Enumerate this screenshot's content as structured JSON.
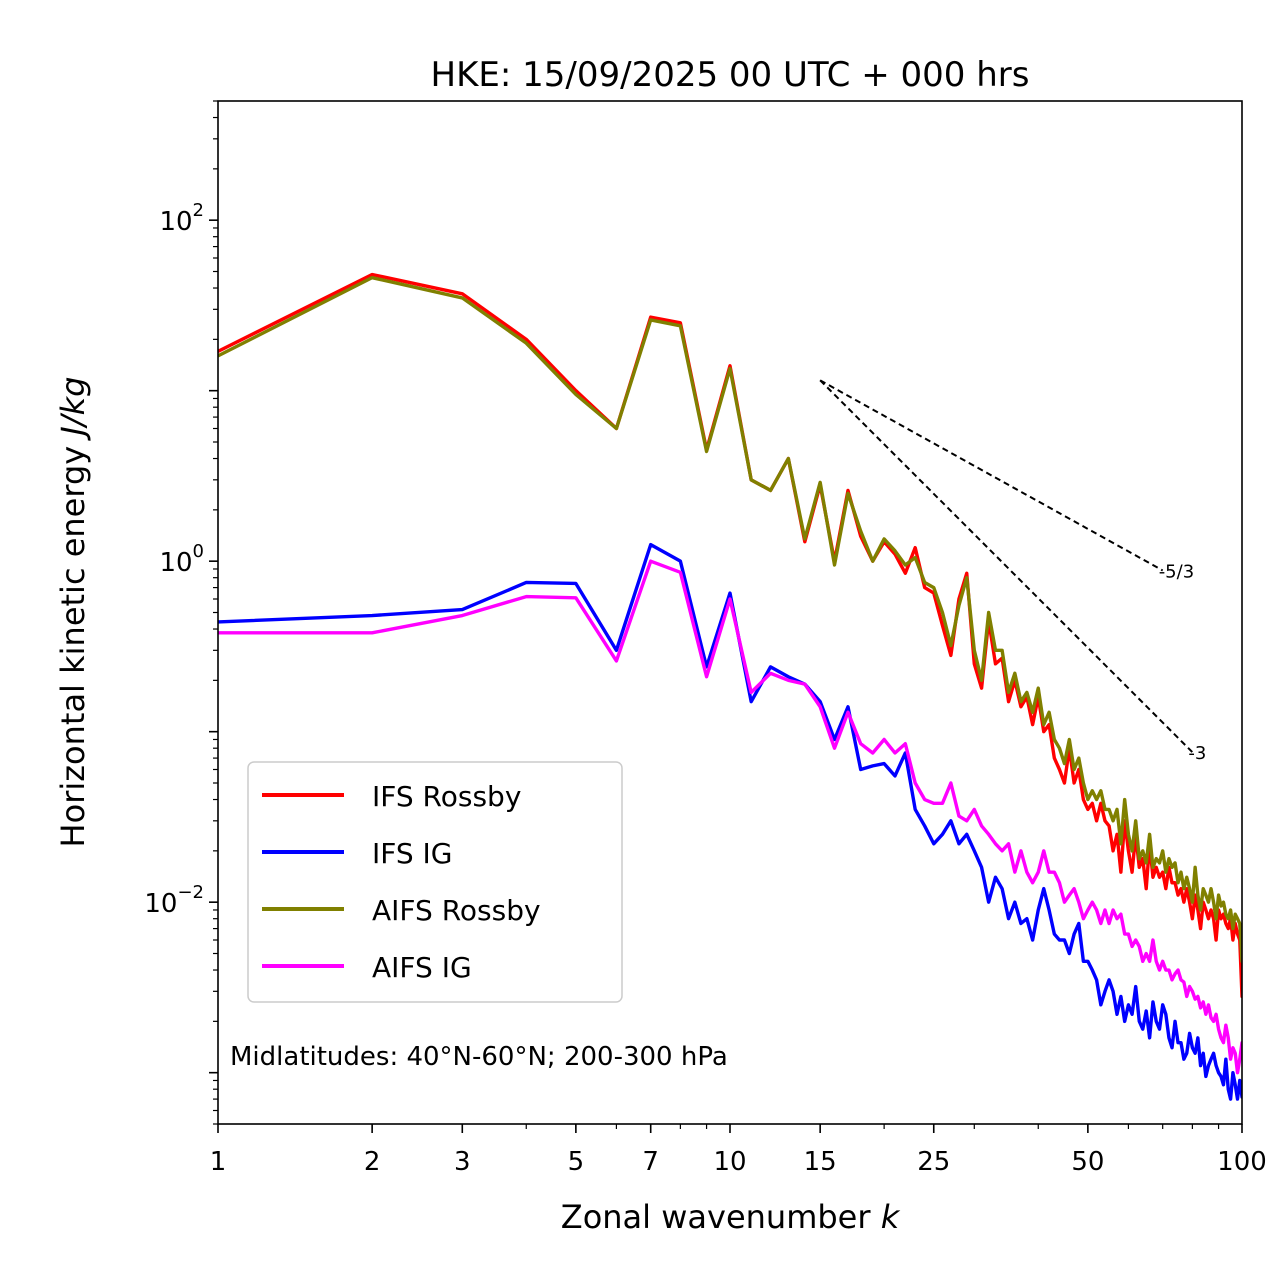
{
  "chart_data": {
    "type": "line",
    "title": "HKE: 15/09/2025 00 UTC + 000 hrs",
    "xlabel": "Zonal wavenumber",
    "xlabel_var": "k",
    "ylabel": "Horizontal kinetic energy",
    "ylabel_units": "J/kg",
    "xscale": "log",
    "yscale": "log",
    "xlim": [
      1,
      100
    ],
    "ylim": [
      0.0005,
      500
    ],
    "x_ticks": [
      1,
      2,
      3,
      5,
      7,
      10,
      15,
      25,
      50,
      100
    ],
    "x_tick_labels": [
      "1",
      "2",
      "3",
      "5",
      "7",
      "10",
      "15",
      "25",
      "50",
      "100"
    ],
    "y_ticks": [
      0.01,
      1,
      100
    ],
    "y_tick_labels": [
      {
        "base": "10",
        "exp": "−2"
      },
      {
        "base": "10",
        "exp": "0"
      },
      {
        "base": "10",
        "exp": "2"
      }
    ],
    "annotation": "Midlatitudes: 40°N-60°N; 200-300 hPa",
    "legend_position": "lower-left",
    "reference_lines": [
      {
        "label": "-5/3",
        "slope": -1.6667,
        "x": [
          15,
          70
        ],
        "y0": 11.5
      },
      {
        "label": "-3",
        "slope": -3,
        "x": [
          15,
          80
        ],
        "y0": 11.5
      }
    ],
    "series": [
      {
        "name": "IFS Rossby",
        "color": "#ff0000",
        "x": [
          1,
          2,
          3,
          4,
          5,
          6,
          7,
          8,
          9,
          10,
          11,
          12,
          13,
          14,
          15,
          16,
          17,
          18,
          19,
          20,
          21,
          22,
          23,
          24,
          25,
          26,
          27,
          28,
          29,
          30,
          31,
          32,
          33,
          34,
          35,
          36,
          37,
          38,
          39,
          40,
          41,
          42,
          43,
          44,
          45,
          46,
          47,
          48,
          49,
          50,
          51,
          52,
          53,
          54,
          55,
          56,
          57,
          58,
          59,
          60,
          61,
          62,
          63,
          64,
          65,
          66,
          67,
          68,
          69,
          70,
          71,
          72,
          73,
          74,
          75,
          76,
          77,
          78,
          79,
          80,
          81,
          82,
          83,
          84,
          85,
          86,
          87,
          88,
          89,
          90,
          91,
          92,
          93,
          94,
          95,
          96,
          97,
          98,
          99,
          100
        ],
        "y": [
          17.0,
          48.0,
          37.0,
          20.0,
          10.0,
          6.0,
          27.0,
          25.0,
          4.5,
          14.0,
          3.0,
          2.6,
          4.0,
          1.3,
          2.8,
          1.0,
          2.6,
          1.4,
          1.0,
          1.3,
          1.1,
          0.85,
          1.2,
          0.7,
          0.65,
          0.42,
          0.28,
          0.6,
          0.85,
          0.25,
          0.18,
          0.45,
          0.25,
          0.27,
          0.15,
          0.2,
          0.14,
          0.16,
          0.11,
          0.16,
          0.1,
          0.11,
          0.07,
          0.06,
          0.05,
          0.08,
          0.05,
          0.06,
          0.04,
          0.035,
          0.038,
          0.03,
          0.038,
          0.03,
          0.028,
          0.02,
          0.025,
          0.015,
          0.03,
          0.02,
          0.015,
          0.025,
          0.016,
          0.018,
          0.012,
          0.022,
          0.014,
          0.016,
          0.014,
          0.015,
          0.012,
          0.016,
          0.013,
          0.013,
          0.011,
          0.012,
          0.01,
          0.012,
          0.01,
          0.008,
          0.011,
          0.009,
          0.007,
          0.01,
          0.009,
          0.008,
          0.009,
          0.008,
          0.006,
          0.009,
          0.008,
          0.0085,
          0.0075,
          0.007,
          0.008,
          0.006,
          0.0075,
          0.0065,
          0.006,
          0.0028
        ]
      },
      {
        "name": "IFS IG",
        "color": "#0000ff",
        "x": [
          1,
          2,
          3,
          4,
          5,
          6,
          7,
          8,
          9,
          10,
          11,
          12,
          13,
          14,
          15,
          16,
          17,
          18,
          19,
          20,
          21,
          22,
          23,
          24,
          25,
          26,
          27,
          28,
          29,
          30,
          31,
          32,
          33,
          34,
          35,
          36,
          37,
          38,
          39,
          40,
          41,
          42,
          43,
          44,
          45,
          46,
          47,
          48,
          49,
          50,
          51,
          52,
          53,
          54,
          55,
          56,
          57,
          58,
          59,
          60,
          61,
          62,
          63,
          64,
          65,
          66,
          67,
          68,
          69,
          70,
          71,
          72,
          73,
          74,
          75,
          76,
          77,
          78,
          79,
          80,
          81,
          82,
          83,
          84,
          85,
          86,
          87,
          88,
          89,
          90,
          91,
          92,
          93,
          94,
          95,
          96,
          97,
          98,
          99,
          100
        ],
        "y": [
          0.44,
          0.48,
          0.52,
          0.75,
          0.74,
          0.3,
          1.25,
          1.0,
          0.24,
          0.65,
          0.15,
          0.24,
          0.21,
          0.19,
          0.15,
          0.09,
          0.14,
          0.06,
          0.063,
          0.065,
          0.055,
          0.075,
          0.035,
          0.028,
          0.022,
          0.025,
          0.03,
          0.022,
          0.025,
          0.02,
          0.016,
          0.01,
          0.014,
          0.012,
          0.008,
          0.01,
          0.0075,
          0.008,
          0.006,
          0.009,
          0.012,
          0.009,
          0.0065,
          0.006,
          0.006,
          0.005,
          0.0065,
          0.0075,
          0.0045,
          0.0045,
          0.004,
          0.0035,
          0.0025,
          0.003,
          0.0035,
          0.003,
          0.0022,
          0.0028,
          0.002,
          0.0025,
          0.0022,
          0.0032,
          0.002,
          0.0018,
          0.0023,
          0.0016,
          0.0026,
          0.002,
          0.0018,
          0.0025,
          0.0022,
          0.0016,
          0.0014,
          0.002,
          0.0015,
          0.0015,
          0.0012,
          0.0013,
          0.0017,
          0.0014,
          0.0013,
          0.0016,
          0.0011,
          0.0013,
          0.00095,
          0.0011,
          0.0012,
          0.0013,
          0.0011,
          0.001,
          0.00095,
          0.00085,
          0.0012,
          0.0008,
          0.0007,
          0.001,
          0.00085,
          0.0007,
          0.0009,
          0.00072
        ]
      },
      {
        "name": "AIFS Rossby",
        "color": "#808000",
        "x": [
          1,
          2,
          3,
          4,
          5,
          6,
          7,
          8,
          9,
          10,
          11,
          12,
          13,
          14,
          15,
          16,
          17,
          18,
          19,
          20,
          21,
          22,
          23,
          24,
          25,
          26,
          27,
          28,
          29,
          30,
          31,
          32,
          33,
          34,
          35,
          36,
          37,
          38,
          39,
          40,
          41,
          42,
          43,
          44,
          45,
          46,
          47,
          48,
          49,
          50,
          51,
          52,
          53,
          54,
          55,
          56,
          57,
          58,
          59,
          60,
          61,
          62,
          63,
          64,
          65,
          66,
          67,
          68,
          69,
          70,
          71,
          72,
          73,
          74,
          75,
          76,
          77,
          78,
          79,
          80,
          81,
          82,
          83,
          84,
          85,
          86,
          87,
          88,
          89,
          90,
          91,
          92,
          93,
          94,
          95,
          96,
          97,
          98,
          99,
          100
        ],
        "y": [
          16.0,
          46.0,
          35.0,
          19.0,
          9.5,
          6.0,
          26.0,
          24.0,
          4.4,
          13.5,
          3.0,
          2.6,
          4.0,
          1.35,
          2.9,
          0.95,
          2.5,
          1.5,
          1.0,
          1.35,
          1.15,
          0.95,
          1.05,
          0.75,
          0.7,
          0.5,
          0.32,
          0.55,
          0.8,
          0.3,
          0.2,
          0.5,
          0.3,
          0.3,
          0.17,
          0.22,
          0.15,
          0.17,
          0.13,
          0.18,
          0.11,
          0.13,
          0.09,
          0.08,
          0.065,
          0.09,
          0.06,
          0.07,
          0.05,
          0.04,
          0.045,
          0.04,
          0.045,
          0.035,
          0.035,
          0.03,
          0.035,
          0.022,
          0.04,
          0.025,
          0.02,
          0.03,
          0.018,
          0.02,
          0.017,
          0.025,
          0.016,
          0.018,
          0.017,
          0.02,
          0.015,
          0.018,
          0.016,
          0.017,
          0.013,
          0.015,
          0.012,
          0.014,
          0.012,
          0.01,
          0.016,
          0.011,
          0.009,
          0.012,
          0.011,
          0.01,
          0.012,
          0.01,
          0.008,
          0.011,
          0.0095,
          0.01,
          0.0085,
          0.008,
          0.009,
          0.007,
          0.0085,
          0.008,
          0.0075,
          0.0045
        ]
      },
      {
        "name": "AIFS IG",
        "color": "#ff00ff",
        "x": [
          1,
          2,
          3,
          4,
          5,
          6,
          7,
          8,
          9,
          10,
          11,
          12,
          13,
          14,
          15,
          16,
          17,
          18,
          19,
          20,
          21,
          22,
          23,
          24,
          25,
          26,
          27,
          28,
          29,
          30,
          31,
          32,
          33,
          34,
          35,
          36,
          37,
          38,
          39,
          40,
          41,
          42,
          43,
          44,
          45,
          46,
          47,
          48,
          49,
          50,
          51,
          52,
          53,
          54,
          55,
          56,
          57,
          58,
          59,
          60,
          61,
          62,
          63,
          64,
          65,
          66,
          67,
          68,
          69,
          70,
          71,
          72,
          73,
          74,
          75,
          76,
          77,
          78,
          79,
          80,
          81,
          82,
          83,
          84,
          85,
          86,
          87,
          88,
          89,
          90,
          91,
          92,
          93,
          94,
          95,
          96,
          97,
          98,
          99,
          100
        ],
        "y": [
          0.38,
          0.38,
          0.48,
          0.62,
          0.61,
          0.26,
          1.0,
          0.86,
          0.21,
          0.6,
          0.17,
          0.22,
          0.2,
          0.19,
          0.14,
          0.08,
          0.13,
          0.085,
          0.075,
          0.09,
          0.075,
          0.085,
          0.05,
          0.04,
          0.038,
          0.038,
          0.05,
          0.032,
          0.03,
          0.035,
          0.028,
          0.025,
          0.022,
          0.02,
          0.022,
          0.015,
          0.02,
          0.015,
          0.013,
          0.015,
          0.02,
          0.015,
          0.015,
          0.013,
          0.01,
          0.011,
          0.012,
          0.01,
          0.008,
          0.009,
          0.01,
          0.009,
          0.0075,
          0.009,
          0.0075,
          0.009,
          0.008,
          0.0085,
          0.0065,
          0.0065,
          0.0055,
          0.006,
          0.0055,
          0.0045,
          0.005,
          0.0045,
          0.006,
          0.0045,
          0.004,
          0.0045,
          0.004,
          0.004,
          0.0035,
          0.0038,
          0.004,
          0.0035,
          0.0034,
          0.0028,
          0.0032,
          0.003,
          0.0027,
          0.0028,
          0.0024,
          0.0026,
          0.0022,
          0.0025,
          0.0021,
          0.002,
          0.0022,
          0.0018,
          0.0016,
          0.0015,
          0.0019,
          0.0016,
          0.0012,
          0.0014,
          0.0013,
          0.001,
          0.0012,
          0.0015
        ]
      }
    ]
  }
}
